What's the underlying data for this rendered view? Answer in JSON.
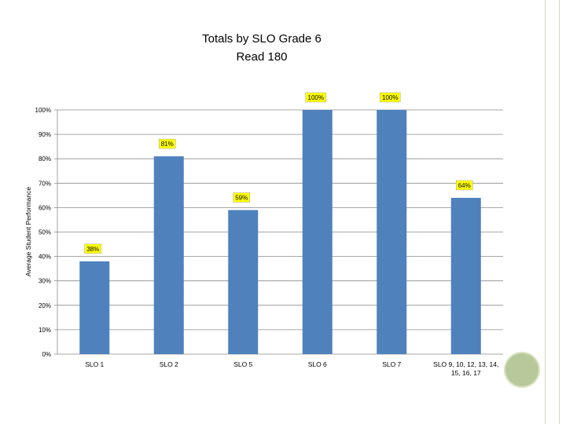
{
  "chart_data": {
    "type": "bar",
    "title_line1": "Totals by SLO Grade 6",
    "title_line2": "Read 180",
    "xlabel": "",
    "ylabel": "Average Student Performance",
    "ylim": [
      0,
      100
    ],
    "y_ticks": [
      "0%",
      "10%",
      "20%",
      "30%",
      "40%",
      "50%",
      "60%",
      "70%",
      "80%",
      "90%",
      "100%"
    ],
    "categories": [
      [
        "SLO 1"
      ],
      [
        "SLO 2"
      ],
      [
        "SLO 5"
      ],
      [
        "SLO 6"
      ],
      [
        "SLO 7"
      ],
      [
        "SLO 9, 10, 12, 13, 14,",
        "15, 16, 17"
      ]
    ],
    "values": [
      38,
      81,
      59,
      100,
      100,
      64
    ],
    "data_labels": [
      "38%",
      "81%",
      "59%",
      "100%",
      "100%",
      "64%"
    ],
    "grid": true,
    "legend": "none",
    "colors": {
      "bar": "#4f81bd",
      "label_fill": "#ffff00",
      "gridline": "#8c8c8c",
      "decoration": "#b7c99a"
    }
  }
}
